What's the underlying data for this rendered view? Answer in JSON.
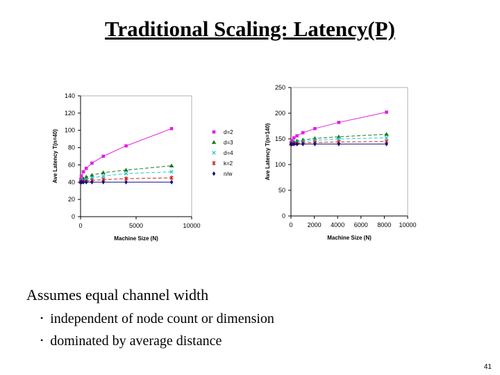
{
  "slide": {
    "title": "Traditional Scaling: Latency(P)",
    "main_point": "Assumes equal channel width",
    "bullets": [
      "independent of node count or dimension",
      "dominated by average distance"
    ],
    "page_number": "41"
  },
  "chart_data": [
    {
      "type": "line",
      "title": "",
      "xlabel": "Machine Size (N)",
      "ylabel": "Ave Latency T(n=40)",
      "xlim": [
        0,
        10000
      ],
      "ylim": [
        0,
        140
      ],
      "xticks": [
        "0",
        "5000",
        "10000"
      ],
      "yticks": [
        "0",
        "20",
        "40",
        "60",
        "80",
        "100",
        "120",
        "140"
      ],
      "legend": "right",
      "series": [
        {
          "name": "d=2",
          "color": "#e020e0",
          "marker": "square",
          "x": [
            16,
            64,
            256,
            512,
            1024,
            2048,
            4096,
            8192
          ],
          "y": [
            43,
            47,
            52,
            56,
            62,
            70,
            82,
            102
          ]
        },
        {
          "name": "d=3",
          "color": "#1a7a1a",
          "marker": "triangle",
          "x": [
            16,
            64,
            256,
            512,
            1024,
            2048,
            4096,
            8192
          ],
          "y": [
            41,
            42,
            44,
            46,
            48,
            51,
            54,
            59
          ]
        },
        {
          "name": "d=4",
          "color": "#20c8d8",
          "marker": "x",
          "x": [
            16,
            64,
            256,
            512,
            1024,
            2048,
            4096,
            8192
          ],
          "y": [
            40,
            41,
            42,
            43,
            45,
            47,
            50,
            52
          ]
        },
        {
          "name": "k=2",
          "color": "#d02020",
          "marker": "star",
          "x": [
            16,
            64,
            256,
            512,
            1024,
            2048,
            4096,
            8192
          ],
          "y": [
            40,
            40,
            41,
            41,
            42,
            43,
            44,
            45
          ]
        },
        {
          "name": "n/w",
          "color": "#101080",
          "marker": "diamond",
          "x": [
            16,
            64,
            256,
            512,
            1024,
            2048,
            4096,
            8192
          ],
          "y": [
            40,
            40,
            40,
            40,
            40,
            40,
            40,
            40
          ]
        }
      ]
    },
    {
      "type": "line",
      "title": "",
      "xlabel": "Machine Size (N)",
      "ylabel": "Ave Latency T(n=140)",
      "xlim": [
        0,
        10000
      ],
      "ylim": [
        0,
        250
      ],
      "xticks": [
        "0",
        "2000",
        "4000",
        "6000",
        "8000",
        "10000"
      ],
      "yticks": [
        "0",
        "50",
        "100",
        "150",
        "200",
        "250"
      ],
      "legend": "none",
      "series": [
        {
          "name": "d=2",
          "color": "#e020e0",
          "marker": "square",
          "x": [
            16,
            64,
            256,
            512,
            1024,
            2048,
            4096,
            8192
          ],
          "y": [
            143,
            147,
            152,
            156,
            162,
            170,
            182,
            202
          ]
        },
        {
          "name": "d=3",
          "color": "#1a7a1a",
          "marker": "triangle",
          "x": [
            16,
            64,
            256,
            512,
            1024,
            2048,
            4096,
            8192
          ],
          "y": [
            141,
            142,
            144,
            146,
            148,
            151,
            154,
            159
          ]
        },
        {
          "name": "d=4",
          "color": "#20c8d8",
          "marker": "x",
          "x": [
            16,
            64,
            256,
            512,
            1024,
            2048,
            4096,
            8192
          ],
          "y": [
            140,
            141,
            142,
            143,
            145,
            147,
            150,
            152
          ]
        },
        {
          "name": "k=2",
          "color": "#d02020",
          "marker": "star",
          "x": [
            16,
            64,
            256,
            512,
            1024,
            2048,
            4096,
            8192
          ],
          "y": [
            140,
            140,
            141,
            141,
            142,
            143,
            144,
            145
          ]
        },
        {
          "name": "n/w",
          "color": "#101080",
          "marker": "diamond",
          "x": [
            16,
            64,
            256,
            512,
            1024,
            2048,
            4096,
            8192
          ],
          "y": [
            140,
            140,
            140,
            140,
            140,
            140,
            140,
            140
          ]
        }
      ]
    }
  ]
}
